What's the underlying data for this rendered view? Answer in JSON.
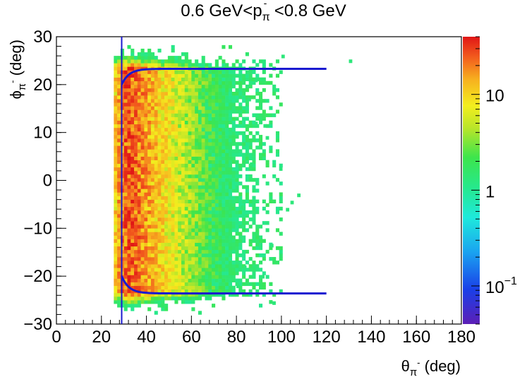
{
  "chart_data": {
    "type": "heatmap",
    "title": {
      "prefix": "0.6 GeV<p",
      "sub": "π",
      "sup": "-",
      "suffix": "<0.8 GeV"
    },
    "xlabel": {
      "base": "θ",
      "sub": "π",
      "sup": "-",
      "unit": " (deg)"
    },
    "ylabel": {
      "base": "ϕ",
      "sub": "π",
      "sup": "-",
      "unit": " (deg)"
    },
    "xlim": [
      0,
      180
    ],
    "ylim": [
      -30,
      30
    ],
    "x_ticks": [
      "0",
      "20",
      "40",
      "60",
      "80",
      "100",
      "120",
      "140",
      "160",
      "180"
    ],
    "y_ticks": [
      "−30",
      "−20",
      "−10",
      "0",
      "10",
      "20",
      "30"
    ],
    "colorbar": {
      "scale": "log",
      "range": [
        0.04,
        40
      ],
      "ticks": [
        {
          "value": 0.1,
          "base": "10",
          "exp": "−1"
        },
        {
          "value": 1,
          "base": "1",
          "exp": ""
        },
        {
          "value": 10,
          "base": "10",
          "exp": ""
        }
      ]
    },
    "density_model": {
      "x_edge": 26,
      "x_peak": 32,
      "x_decay": 14,
      "phi_halfwidth": 23.5,
      "peak_count": 30,
      "bin_width_x": 1.5,
      "bin_width_y": 0.75
    },
    "sparse_bins": [
      [
        130,
        24.5
      ],
      [
        100,
        25.5
      ],
      [
        88,
        11.5
      ],
      [
        92,
        11
      ],
      [
        107,
        -3.5
      ],
      [
        102,
        -6.5
      ],
      [
        91,
        -20.5
      ],
      [
        95,
        -14
      ],
      [
        83,
        -18.5
      ],
      [
        88,
        20.5
      ],
      [
        96,
        -26
      ],
      [
        80,
        -22.5
      ],
      [
        104,
        -5
      ],
      [
        78,
        -13
      ],
      [
        86,
        3
      ],
      [
        99,
        2
      ],
      [
        93,
        8.5
      ],
      [
        82,
        -6
      ],
      [
        85,
        16.5
      ]
    ],
    "fiducial_cut": {
      "theta_min": 29,
      "x_end": 120,
      "phi_plateau_top": 23.3,
      "phi_plateau_bottom": -23.6,
      "phi_at_edge_top": 20,
      "phi_at_edge_bottom": -20,
      "color": "#1a1ad0"
    }
  }
}
